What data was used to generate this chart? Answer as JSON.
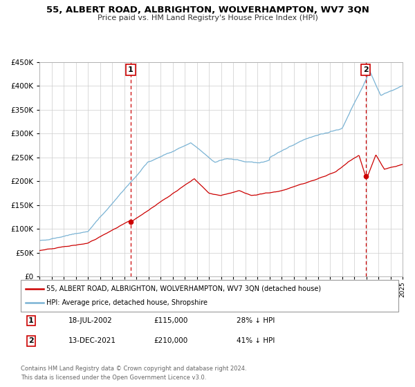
{
  "title": "55, ALBERT ROAD, ALBRIGHTON, WOLVERHAMPTON, WV7 3QN",
  "subtitle": "Price paid vs. HM Land Registry's House Price Index (HPI)",
  "legend_line1": "55, ALBERT ROAD, ALBRIGHTON, WOLVERHAMPTON, WV7 3QN (detached house)",
  "legend_line2": "HPI: Average price, detached house, Shropshire",
  "annotation1_date": "18-JUL-2002",
  "annotation1_price": "£115,000",
  "annotation1_hpi": "28% ↓ HPI",
  "annotation2_date": "13-DEC-2021",
  "annotation2_price": "£210,000",
  "annotation2_hpi": "41% ↓ HPI",
  "footer1": "Contains HM Land Registry data © Crown copyright and database right 2024.",
  "footer2": "This data is licensed under the Open Government Licence v3.0.",
  "sale1_year": 2002.54,
  "sale1_value": 115000,
  "sale2_year": 2021.95,
  "sale2_value": 210000,
  "hpi_color": "#7ab3d4",
  "price_color": "#cc0000",
  "annotation_line_color": "#cc0000",
  "background_color": "#ffffff",
  "plot_bg_color": "#ffffff",
  "grid_color": "#cccccc",
  "ylim": [
    0,
    450000
  ],
  "xlim_start": 1995,
  "xlim_end": 2025,
  "ytick_step": 50000
}
